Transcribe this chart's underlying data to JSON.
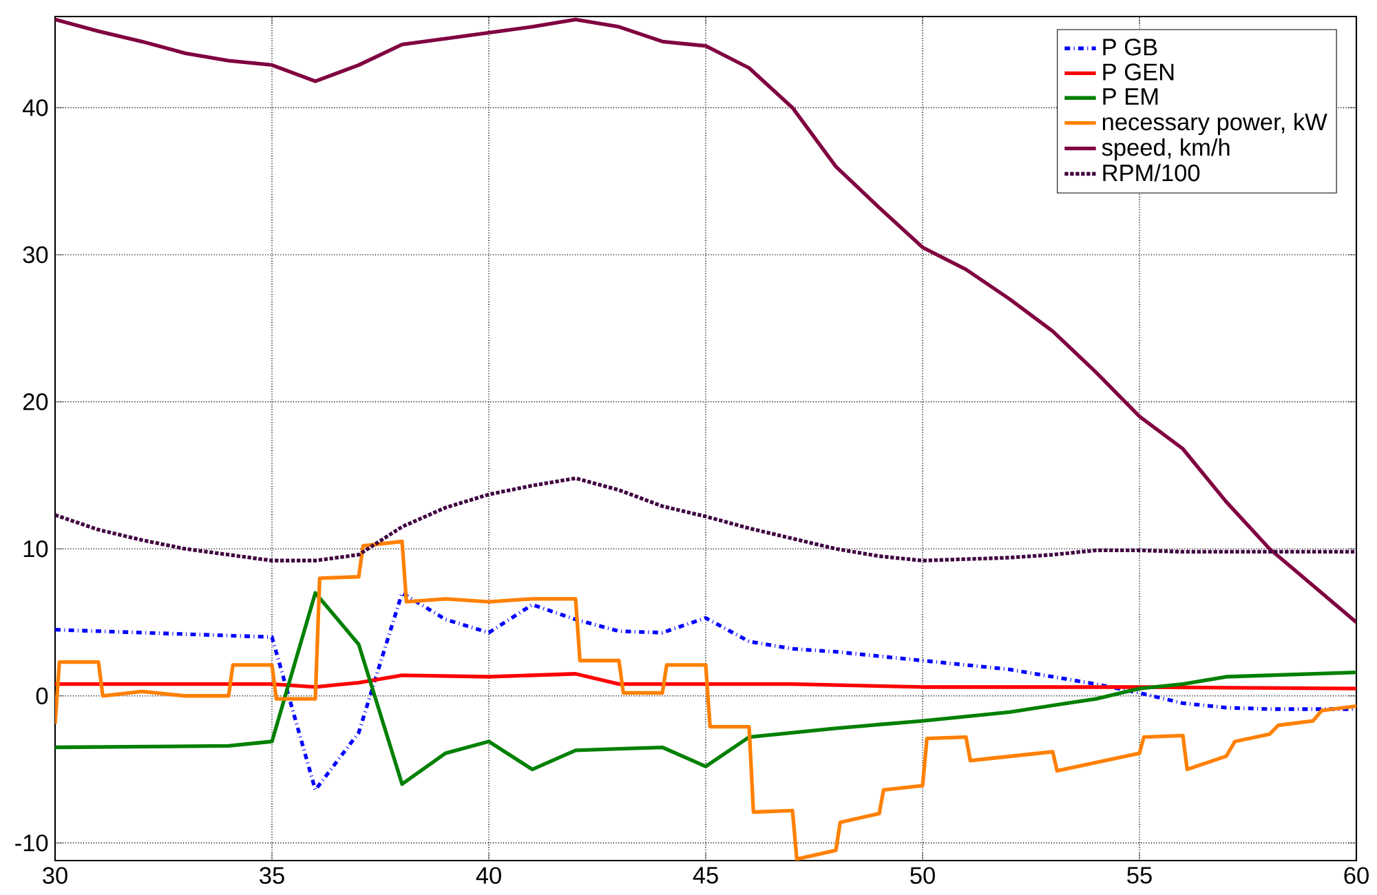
{
  "chart_data": {
    "type": "line",
    "xlim": [
      30,
      60
    ],
    "ylim": [
      -11.2,
      46.2
    ],
    "xticks": [
      30,
      35,
      40,
      45,
      50,
      55,
      60
    ],
    "yticks": [
      -10,
      0,
      10,
      20,
      30,
      40
    ],
    "grid": true,
    "legend": "top right",
    "series": [
      {
        "name": "P GB",
        "color": "#0000ff",
        "line_style": "dashdot",
        "x": [
          30,
          35,
          36,
          37,
          38,
          39,
          40,
          41,
          42,
          43,
          44,
          45,
          46,
          47,
          48,
          50,
          52,
          53,
          54,
          55,
          56,
          57,
          58,
          59,
          60
        ],
        "values": [
          4.5,
          4.0,
          -6.4,
          -2.5,
          7.0,
          5.2,
          4.3,
          6.2,
          5.2,
          4.4,
          4.3,
          5.3,
          3.7,
          3.2,
          3.0,
          2.4,
          1.8,
          1.3,
          0.8,
          0.2,
          -0.5,
          -0.8,
          -0.9,
          -0.9,
          -0.9
        ]
      },
      {
        "name": "P GEN",
        "color": "#ff0000",
        "line_style": "solid",
        "x": [
          30,
          35,
          36,
          37,
          38,
          40,
          42,
          43,
          45,
          47,
          50,
          55,
          60
        ],
        "values": [
          0.8,
          0.8,
          0.6,
          0.9,
          1.4,
          1.3,
          1.5,
          0.8,
          0.8,
          0.8,
          0.6,
          0.6,
          0.5
        ]
      },
      {
        "name": "P EM",
        "color": "#008000",
        "line_style": "solid",
        "x": [
          30,
          34,
          35,
          36,
          37,
          38,
          39,
          40,
          41,
          42,
          43,
          44,
          45,
          46,
          48,
          50,
          52,
          54,
          55,
          56,
          57,
          60
        ],
        "values": [
          -3.5,
          -3.4,
          -3.1,
          7.0,
          3.5,
          -6.0,
          -3.9,
          -3.1,
          -5.0,
          -3.7,
          -3.6,
          -3.5,
          -4.8,
          -2.8,
          -2.2,
          -1.7,
          -1.1,
          -0.2,
          0.5,
          0.8,
          1.3,
          1.6
        ]
      },
      {
        "name": "necessary power, kW",
        "color": "#ff8000",
        "line_style": "solid",
        "x": [
          30,
          30.1,
          31,
          31.1,
          32,
          33,
          34,
          34.1,
          35,
          35.1,
          36,
          36.1,
          37,
          37.1,
          38,
          38.1,
          39,
          40,
          41,
          42,
          42.1,
          43,
          43.1,
          44,
          44.1,
          45,
          45.1,
          46,
          46.1,
          47,
          47.1,
          48,
          48.1,
          49,
          49.1,
          50,
          50.1,
          51,
          51.1,
          53,
          53.1,
          55,
          55.1,
          56,
          56.1,
          57,
          57.2,
          58,
          58.2,
          59,
          59.2,
          60
        ],
        "values": [
          -1.9,
          2.3,
          2.3,
          0,
          0.3,
          0,
          0,
          2.1,
          2.1,
          -0.2,
          -0.2,
          8.0,
          8.1,
          10.2,
          10.5,
          6.4,
          6.6,
          6.4,
          6.6,
          6.6,
          2.4,
          2.4,
          0.2,
          0.2,
          2.1,
          2.1,
          -2.1,
          -2.1,
          -7.9,
          -7.8,
          -11.1,
          -10.5,
          -8.6,
          -8.0,
          -6.4,
          -6.1,
          -2.9,
          -2.8,
          -4.4,
          -3.8,
          -5.1,
          -3.9,
          -2.8,
          -2.7,
          -5.0,
          -4.1,
          -3.1,
          -2.6,
          -2.0,
          -1.7,
          -1.0,
          -0.7
        ]
      },
      {
        "name": "speed, km/h",
        "color": "#800040",
        "line_style": "solid",
        "x": [
          30,
          31,
          32,
          33,
          34,
          35,
          36,
          37,
          38,
          39,
          40,
          41,
          42,
          43,
          44,
          45,
          46,
          47,
          48,
          49,
          50,
          51,
          52,
          53,
          54,
          55,
          56,
          57,
          58,
          59,
          60
        ],
        "values": [
          46.0,
          45.2,
          44.5,
          43.7,
          43.2,
          42.9,
          41.8,
          42.9,
          44.3,
          44.7,
          45.1,
          45.5,
          46.0,
          45.5,
          44.5,
          44.2,
          42.7,
          40.0,
          36.0,
          33.2,
          30.5,
          29.0,
          27.0,
          24.8,
          22.0,
          19.0,
          16.8,
          13.2,
          10.0,
          7.5,
          5.0
        ]
      },
      {
        "name": "RPM/100",
        "color": "#400040",
        "line_style": "dotted",
        "x": [
          30,
          31,
          32,
          33,
          34,
          35,
          36,
          37,
          38,
          39,
          40,
          41,
          42,
          43,
          44,
          45,
          46,
          47,
          48,
          49,
          50,
          51,
          52,
          53,
          54,
          55,
          56,
          57,
          58,
          59,
          60
        ],
        "values": [
          12.3,
          11.3,
          10.6,
          10.0,
          9.6,
          9.2,
          9.2,
          9.6,
          11.5,
          12.8,
          13.7,
          14.3,
          14.8,
          14.0,
          12.9,
          12.2,
          11.4,
          10.7,
          10.0,
          9.5,
          9.2,
          9.3,
          9.4,
          9.6,
          9.9,
          9.9,
          9.8,
          9.8,
          9.8,
          9.8,
          9.8
        ]
      }
    ]
  }
}
